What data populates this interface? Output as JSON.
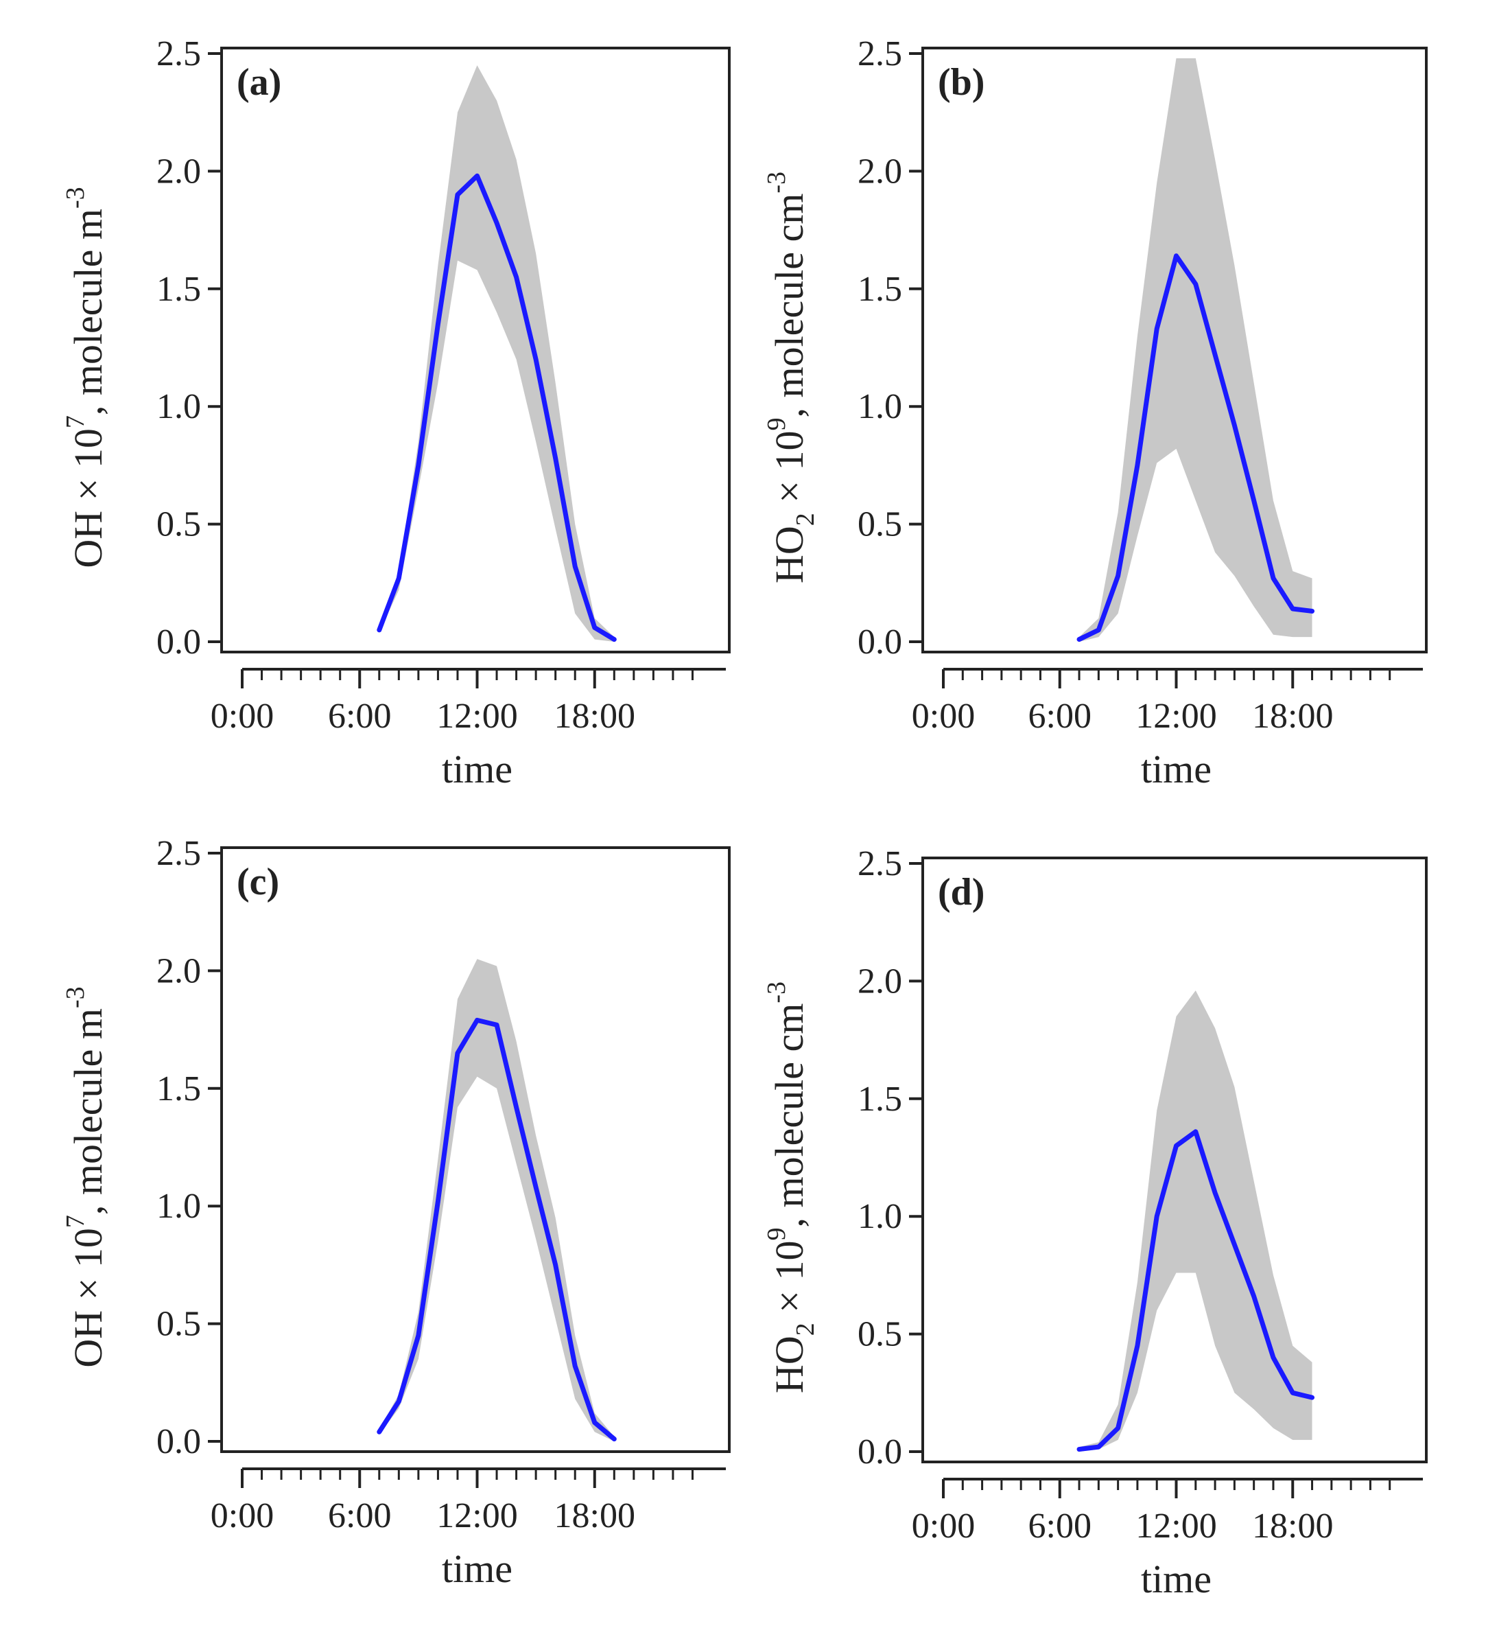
{
  "chart_data": [
    {
      "type": "line",
      "panel_label": "(a)",
      "xlabel": "time",
      "ylabel": {
        "prefix": "OH × 10",
        "sup": "7",
        "suffix": ", molecule m",
        "unit_sup": "-3"
      },
      "ylim": [
        0,
        2.5
      ],
      "yticks": [
        "0.0",
        "0.5",
        "1.0",
        "1.5",
        "2.0",
        "2.5"
      ],
      "xlim": [
        0,
        24
      ],
      "xticks": [
        "0:00",
        "6:00",
        "12:00",
        "18:00"
      ],
      "x": [
        7,
        8,
        9,
        10,
        11,
        12,
        13,
        14,
        15,
        16,
        17,
        18,
        19
      ],
      "series": [
        {
          "name": "mean",
          "color": "#1a1aff",
          "values": [
            0.05,
            0.27,
            0.75,
            1.35,
            1.9,
            1.98,
            1.78,
            1.55,
            1.2,
            0.78,
            0.32,
            0.06,
            0.01
          ]
        },
        {
          "name": "upper",
          "color": "#c8c8c8",
          "values": [
            0.05,
            0.3,
            0.85,
            1.6,
            2.25,
            2.45,
            2.3,
            2.05,
            1.65,
            1.1,
            0.5,
            0.1,
            0.02
          ]
        },
        {
          "name": "lower",
          "color": "#c8c8c8",
          "values": [
            0.04,
            0.22,
            0.65,
            1.1,
            1.62,
            1.58,
            1.4,
            1.2,
            0.85,
            0.48,
            0.12,
            0.01,
            0.0
          ]
        }
      ]
    },
    {
      "type": "line",
      "panel_label": "(b)",
      "xlabel": "time",
      "ylabel": {
        "prefix": "HO",
        "sub": "2",
        "mid": " × 10",
        "sup": "9",
        "suffix": ", molecule cm",
        "unit_sup": "-3"
      },
      "ylim": [
        0,
        2.5
      ],
      "yticks": [
        "0.0",
        "0.5",
        "1.0",
        "1.5",
        "2.0",
        "2.5"
      ],
      "xlim": [
        0,
        24
      ],
      "xticks": [
        "0:00",
        "6:00",
        "12:00",
        "18:00"
      ],
      "x": [
        7,
        8,
        9,
        10,
        11,
        12,
        13,
        14,
        15,
        16,
        17,
        18,
        19
      ],
      "series": [
        {
          "name": "mean",
          "color": "#1a1aff",
          "values": [
            0.01,
            0.05,
            0.28,
            0.75,
            1.33,
            1.64,
            1.52,
            1.22,
            0.92,
            0.6,
            0.27,
            0.14,
            0.13
          ]
        },
        {
          "name": "upper",
          "color": "#c8c8c8",
          "values": [
            0.02,
            0.1,
            0.55,
            1.3,
            1.95,
            2.48,
            2.48,
            2.05,
            1.6,
            1.1,
            0.6,
            0.3,
            0.27
          ]
        },
        {
          "name": "lower",
          "color": "#c8c8c8",
          "values": [
            0.0,
            0.02,
            0.12,
            0.45,
            0.76,
            0.82,
            0.6,
            0.38,
            0.28,
            0.15,
            0.03,
            0.02,
            0.02
          ]
        }
      ]
    },
    {
      "type": "line",
      "panel_label": "(c)",
      "xlabel": "time",
      "ylabel": {
        "prefix": "OH × 10",
        "sup": "7",
        "suffix": ", molecule m",
        "unit_sup": "-3"
      },
      "ylim": [
        0,
        2.5
      ],
      "yticks": [
        "0.0",
        "0.5",
        "1.0",
        "1.5",
        "2.0",
        "2.5"
      ],
      "xlim": [
        0,
        24
      ],
      "xticks": [
        "0:00",
        "6:00",
        "12:00",
        "18:00"
      ],
      "x": [
        7,
        8,
        9,
        10,
        11,
        12,
        13,
        14,
        15,
        16,
        17,
        18,
        19
      ],
      "series": [
        {
          "name": "mean",
          "color": "#1a1aff",
          "values": [
            0.04,
            0.17,
            0.45,
            1.02,
            1.65,
            1.79,
            1.77,
            1.42,
            1.08,
            0.75,
            0.32,
            0.08,
            0.01
          ]
        },
        {
          "name": "upper",
          "color": "#c8c8c8",
          "values": [
            0.05,
            0.2,
            0.55,
            1.2,
            1.88,
            2.05,
            2.02,
            1.7,
            1.3,
            0.95,
            0.45,
            0.12,
            0.02
          ]
        },
        {
          "name": "lower",
          "color": "#c8c8c8",
          "values": [
            0.03,
            0.14,
            0.35,
            0.85,
            1.42,
            1.55,
            1.5,
            1.18,
            0.86,
            0.52,
            0.18,
            0.04,
            0.0
          ]
        }
      ]
    },
    {
      "type": "line",
      "panel_label": "(d)",
      "xlabel": "time",
      "ylabel": {
        "prefix": "HO",
        "sub": "2",
        "mid": " × 10",
        "sup": "9",
        "suffix": ", molecule cm",
        "unit_sup": "-3"
      },
      "ylim": [
        0,
        2.5
      ],
      "yticks": [
        "0.0",
        "0.5",
        "1.0",
        "1.5",
        "2.0",
        "2.5"
      ],
      "xlim": [
        0,
        24
      ],
      "xticks": [
        "0:00",
        "6:00",
        "12:00",
        "18:00"
      ],
      "x": [
        7,
        8,
        9,
        10,
        11,
        12,
        13,
        14,
        15,
        16,
        17,
        18,
        19
      ],
      "series": [
        {
          "name": "mean",
          "color": "#1a1aff",
          "values": [
            0.01,
            0.02,
            0.1,
            0.45,
            1.0,
            1.3,
            1.36,
            1.1,
            0.88,
            0.66,
            0.4,
            0.25,
            0.23
          ]
        },
        {
          "name": "upper",
          "color": "#c8c8c8",
          "values": [
            0.02,
            0.04,
            0.2,
            0.72,
            1.45,
            1.85,
            1.96,
            1.8,
            1.55,
            1.15,
            0.75,
            0.45,
            0.38
          ]
        },
        {
          "name": "lower",
          "color": "#c8c8c8",
          "values": [
            0.0,
            0.01,
            0.05,
            0.25,
            0.6,
            0.76,
            0.76,
            0.45,
            0.25,
            0.18,
            0.1,
            0.05,
            0.05
          ]
        }
      ]
    }
  ]
}
